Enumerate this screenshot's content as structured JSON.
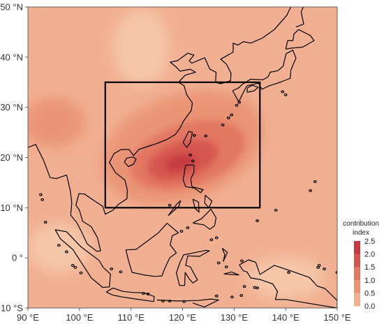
{
  "map": {
    "lon_range": [
      90,
      150
    ],
    "lat_range": [
      -10,
      50
    ],
    "lon_ticks": [
      {
        "value": 90,
        "label": "90 °E"
      },
      {
        "value": 100,
        "label": "100 °E"
      },
      {
        "value": 110,
        "label": "110 °E"
      },
      {
        "value": 120,
        "label": "120 °E"
      },
      {
        "value": 130,
        "label": "130 °E"
      },
      {
        "value": 140,
        "label": "140 °E"
      },
      {
        "value": 150,
        "label": "150 °E"
      }
    ],
    "lat_ticks": [
      {
        "value": 50,
        "label": "50 °N"
      },
      {
        "value": 40,
        "label": "40 °N"
      },
      {
        "value": 30,
        "label": "30 °N"
      },
      {
        "value": 20,
        "label": "20 °N"
      },
      {
        "value": 10,
        "label": "10 °N"
      },
      {
        "value": 0,
        "label": "0 °"
      },
      {
        "value": -10,
        "label": "−10 °S"
      }
    ],
    "study_box": {
      "lon": [
        105,
        135
      ],
      "lat": [
        10,
        35
      ]
    },
    "colorbar": {
      "title_line1": "contribution",
      "title_line2": "index",
      "ticks": [
        "2.5",
        "2.0",
        "1.5",
        "1.0",
        "0.5",
        "0.0"
      ],
      "colors": [
        "#c63a3f",
        "#d6564f",
        "#e27762",
        "#ea9476",
        "#f1b091",
        "#f8cfb7"
      ]
    },
    "background_color": "#f1b091",
    "hotspot_colors": [
      "#ea9476",
      "#e27762",
      "#d6564f",
      "#c63a3f"
    ],
    "land_color": "none",
    "coast_color": "#000000"
  }
}
